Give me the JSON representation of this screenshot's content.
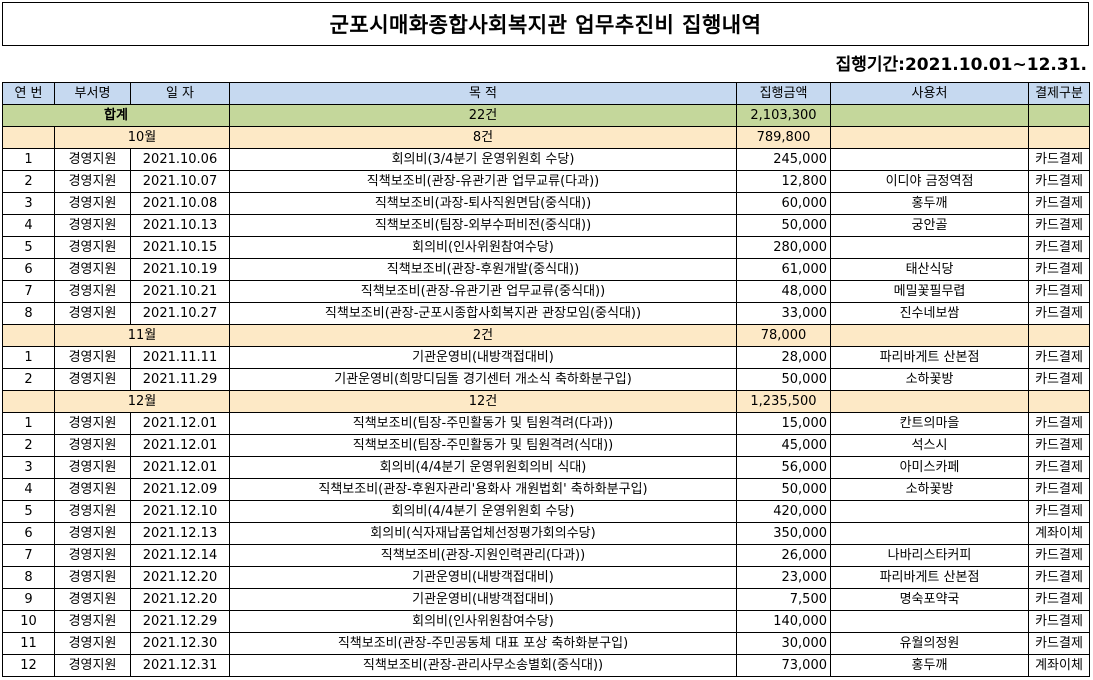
{
  "title": "군포시매화종합사회복지관 업무추진비 집행내역",
  "period": "집행기간:2021.10.01~12.31.",
  "headers": [
    "연 번",
    "부서명",
    "일 자",
    "목 적",
    "집행금액",
    "사용처",
    "결제구분"
  ],
  "total": {
    "label": "합계",
    "count": "22건",
    "amount": "2,103,300"
  },
  "groups": [
    {
      "month": "10월",
      "count": "8건",
      "amount": "789,800",
      "rows": [
        [
          "1",
          "경영지원",
          "2021.10.06",
          "회의비(3/4분기 운영위원회 수당)",
          "245,000",
          "",
          "카드결제"
        ],
        [
          "2",
          "경영지원",
          "2021.10.07",
          "직책보조비(관장-유관기관 업무교류(다과))",
          "12,800",
          "이디야 금정역점",
          "카드결제"
        ],
        [
          "3",
          "경영지원",
          "2021.10.08",
          "직책보조비(과장-퇴사직원면담(중식대))",
          "60,000",
          "홍두깨",
          "카드결제"
        ],
        [
          "4",
          "경영지원",
          "2021.10.13",
          "직책보조비(팀장-외부수퍼비전(중식대))",
          "50,000",
          "궁안골",
          "카드결제"
        ],
        [
          "5",
          "경영지원",
          "2021.10.15",
          "회의비(인사위원참여수당)",
          "280,000",
          "",
          "카드결제"
        ],
        [
          "6",
          "경영지원",
          "2021.10.19",
          "직책보조비(관장-후원개발(중식대))",
          "61,000",
          "태산식당",
          "카드결제"
        ],
        [
          "7",
          "경영지원",
          "2021.10.21",
          "직책보조비(관장-유관기관 업무교류(중식대))",
          "48,000",
          "메밀꽃필무렵",
          "카드결제"
        ],
        [
          "8",
          "경영지원",
          "2021.10.27",
          "직책보조비(관장-군포시종합사회복지관 관장모임(중식대))",
          "33,000",
          "진수네보쌈",
          "카드결제"
        ]
      ]
    },
    {
      "month": "11월",
      "count": "2건",
      "amount": "78,000",
      "rows": [
        [
          "1",
          "경영지원",
          "2021.11.11",
          "기관운영비(내방객접대비)",
          "28,000",
          "파리바게트 산본점",
          "카드결제"
        ],
        [
          "2",
          "경영지원",
          "2021.11.29",
          "기관운영비(희망디딤돌 경기센터 개소식 축하화분구입)",
          "50,000",
          "소하꽃방",
          "카드결제"
        ]
      ]
    },
    {
      "month": "12월",
      "count": "12건",
      "amount": "1,235,500",
      "rows": [
        [
          "1",
          "경영지원",
          "2021.12.01",
          "직책보조비(팀장-주민활동가 및 팀원격려(다과))",
          "15,000",
          "칸트의마을",
          "카드결제"
        ],
        [
          "2",
          "경영지원",
          "2021.12.01",
          "직책보조비(팀장-주민활동가 및 팀원격려(식대))",
          "45,000",
          "석스시",
          "카드결제"
        ],
        [
          "3",
          "경영지원",
          "2021.12.01",
          "회의비(4/4분기 운영위원회의비 식대)",
          "56,000",
          "아미스카페",
          "카드결제"
        ],
        [
          "4",
          "경영지원",
          "2021.12.09",
          "직책보조비(관장-후원자관리'용화사 개원법회' 축하화분구입)",
          "50,000",
          "소하꽃방",
          "카드결제"
        ],
        [
          "5",
          "경영지원",
          "2021.12.10",
          "회의비(4/4분기 운영위원회 수당)",
          "420,000",
          "",
          "카드결제"
        ],
        [
          "6",
          "경영지원",
          "2021.12.13",
          "회의비(식자재납품업체선정평가회의수당)",
          "350,000",
          "",
          "계좌이체"
        ],
        [
          "7",
          "경영지원",
          "2021.12.14",
          "직책보조비(관장-지원인력관리(다과))",
          "26,000",
          "나바리스타커피",
          "카드결제"
        ],
        [
          "8",
          "경영지원",
          "2021.12.20",
          "기관운영비(내방객접대비)",
          "23,000",
          "파리바게트 산본점",
          "카드결제"
        ],
        [
          "9",
          "경영지원",
          "2021.12.20",
          "기관운영비(내방객접대비)",
          "7,500",
          "명숙포약국",
          "카드결제"
        ],
        [
          "10",
          "경영지원",
          "2021.12.29",
          "회의비(인사위원참여수당)",
          "140,000",
          "",
          "카드결제"
        ],
        [
          "11",
          "경영지원",
          "2021.12.30",
          "직책보조비(관장-주민공동체 대표 포상 축하화분구입)",
          "30,000",
          "유월의정원",
          "카드결제"
        ],
        [
          "12",
          "경영지원",
          "2021.12.31",
          "직책보조비(관장-관리사무소송별회(중식대))",
          "73,000",
          "홍두깨",
          "계좌이체"
        ]
      ]
    }
  ]
}
